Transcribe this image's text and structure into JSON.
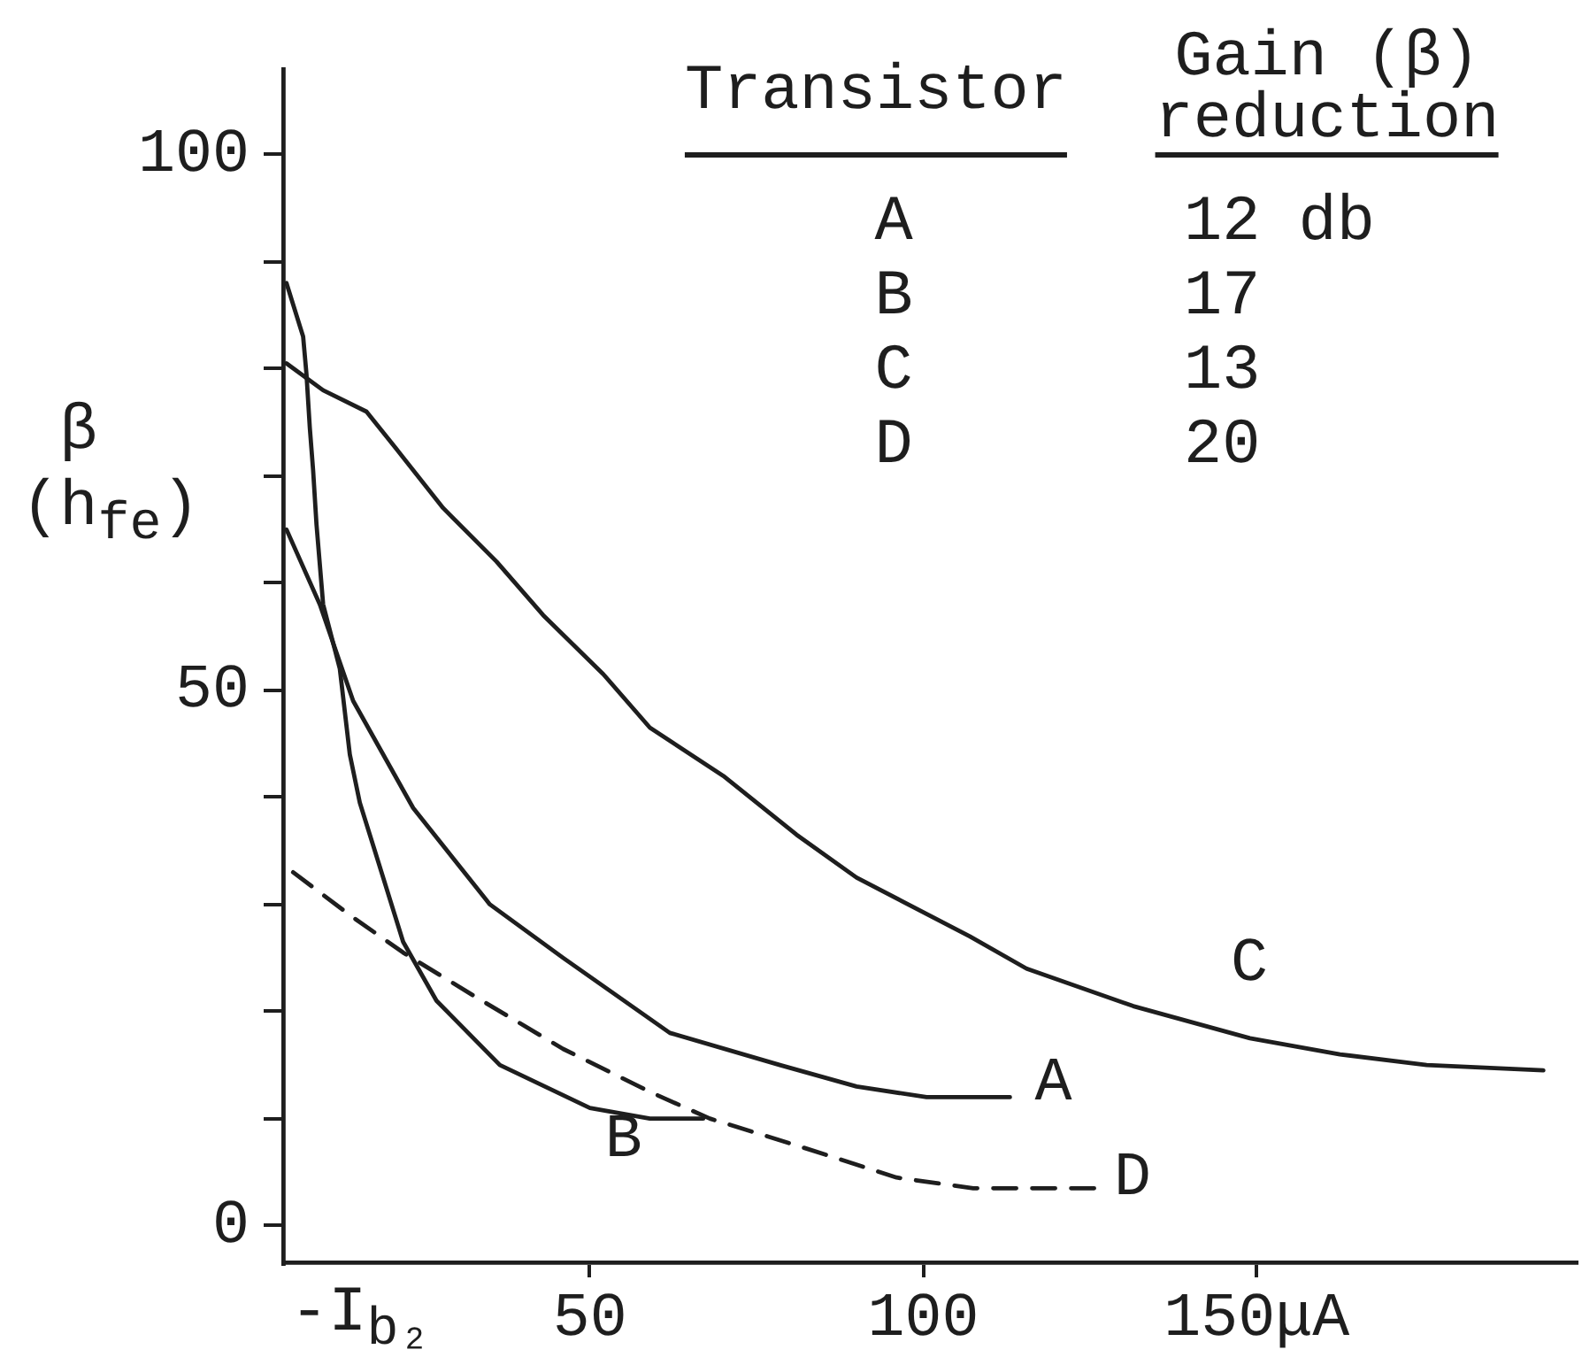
{
  "chart_data": {
    "type": "line",
    "xlabel": "-I$_{b₂}$",
    "ylabel": "β (h$_{fe}$)",
    "annotations": [
      "Transistor",
      "Gain (β) reduction",
      "A",
      "12 db",
      "B",
      "17",
      "C",
      "13",
      "D",
      "20"
    ],
    "xlim": [
      4,
      198
    ],
    "xticks": [
      50,
      100,
      {
        "value": 150,
        "label": "150μA"
      }
    ],
    "ylim": [
      -3.5,
      108
    ],
    "yticks": [
      0,
      {
        "value": 10,
        "label": null
      },
      {
        "value": 20,
        "label": null
      },
      {
        "value": 30,
        "label": null
      },
      {
        "value": 40,
        "label": null
      },
      50,
      {
        "value": 60,
        "label": null
      },
      {
        "value": 70,
        "label": null
      },
      {
        "value": 80,
        "label": null
      },
      {
        "value": 90,
        "label": null
      },
      100
    ],
    "grid": false,
    "legend": false,
    "marker": "none",
    "line_style": "solid",
    "series": [
      {
        "name": "A",
        "color": "#1e1e1e",
        "x": [
          4.5,
          9.5,
          14.5,
          23.5,
          35,
          46,
          62,
          78.5,
          90,
          100.5,
          113
        ],
        "values": [
          65,
          58,
          49,
          39,
          30,
          25,
          18,
          15,
          13,
          12,
          12
        ]
      },
      {
        "name": "B",
        "color": "#1e1e1e",
        "x": [
          4.5,
          5.5,
          7,
          7.5,
          8,
          8.5,
          9,
          10,
          12.5,
          14,
          15.5,
          17.5,
          22,
          27,
          36.5,
          50,
          59,
          67
        ],
        "values": [
          88,
          86,
          83,
          79.5,
          74.5,
          70.5,
          65.5,
          58,
          52,
          44,
          39.5,
          35.5,
          26.5,
          21,
          15,
          11,
          10,
          10
        ]
      },
      {
        "name": "C",
        "color": "#1e1e1e",
        "x": [
          4.5,
          10,
          16.5,
          21,
          28,
          36,
          43,
          52,
          59,
          70,
          81,
          90,
          107,
          115.5,
          131.5,
          149,
          162.5,
          175.5,
          193
        ],
        "values": [
          80.5,
          78,
          76,
          72.5,
          67,
          62,
          57,
          51.5,
          46.5,
          42,
          36.5,
          32.5,
          27,
          24,
          20.5,
          17.5,
          16,
          15,
          14.5
        ]
      },
      {
        "name": "D",
        "color": "#1e1e1e",
        "line_style": "dashed",
        "x": [
          5.5,
          14,
          22,
          32.5,
          46,
          59,
          68,
          81,
          96,
          107.5,
          127
        ],
        "values": [
          33,
          29,
          25.5,
          21.5,
          16.5,
          12.5,
          10,
          7.5,
          4.5,
          3.5,
          3.5
        ]
      }
    ]
  }
}
